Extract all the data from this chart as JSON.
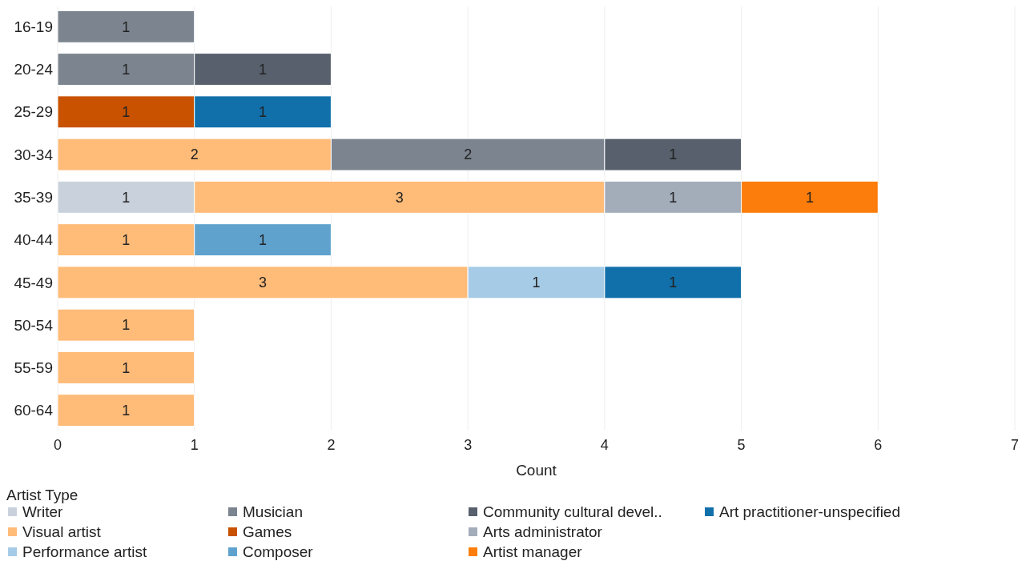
{
  "chart_data": {
    "type": "bar",
    "orientation": "horizontal",
    "stacked": true,
    "xlabel": "Count",
    "legend_title": "Artist Type",
    "legend": "bottom",
    "grid": "x",
    "data_labels": true,
    "categories": [
      "16-19",
      "20-24",
      "25-29",
      "30-34",
      "35-39",
      "40-44",
      "45-49",
      "50-54",
      "55-59",
      "60-64"
    ],
    "xlim": [
      0,
      7
    ],
    "xticks": [
      0,
      1,
      2,
      3,
      4,
      5,
      6,
      7
    ],
    "series": [
      {
        "name": "Writer",
        "color": "#c9d1dc",
        "values": [
          null,
          null,
          null,
          null,
          1,
          null,
          null,
          null,
          null,
          null
        ]
      },
      {
        "name": "Visual artist",
        "color": "#ffbb78",
        "values": [
          null,
          null,
          null,
          2,
          3,
          1,
          3,
          1,
          1,
          1
        ]
      },
      {
        "name": "Performance artist",
        "color": "#a6cbe6",
        "values": [
          null,
          null,
          null,
          null,
          null,
          null,
          1,
          null,
          null,
          null
        ]
      },
      {
        "name": "Musician",
        "color": "#7b848f",
        "values": [
          1,
          1,
          null,
          2,
          null,
          null,
          null,
          null,
          null,
          null
        ]
      },
      {
        "name": "Games",
        "color": "#c85200",
        "values": [
          null,
          null,
          1,
          null,
          null,
          null,
          null,
          null,
          null,
          null
        ]
      },
      {
        "name": "Composer",
        "color": "#5fa2ce",
        "values": [
          null,
          null,
          null,
          null,
          null,
          1,
          null,
          null,
          null,
          null
        ]
      },
      {
        "name": "Community cultural devel..",
        "color": "#57606c",
        "values": [
          null,
          1,
          null,
          1,
          null,
          null,
          null,
          null,
          null,
          null
        ]
      },
      {
        "name": "Arts administrator",
        "color": "#a3acb9",
        "values": [
          null,
          null,
          null,
          null,
          1,
          null,
          null,
          null,
          null,
          null
        ]
      },
      {
        "name": "Artist manager",
        "color": "#fc7d0b",
        "values": [
          null,
          null,
          null,
          null,
          1,
          null,
          null,
          null,
          null,
          null
        ]
      },
      {
        "name": "Art practitioner-unspecified",
        "color": "#1170aa",
        "values": [
          null,
          null,
          1,
          null,
          null,
          null,
          1,
          null,
          null,
          null
        ]
      }
    ]
  }
}
